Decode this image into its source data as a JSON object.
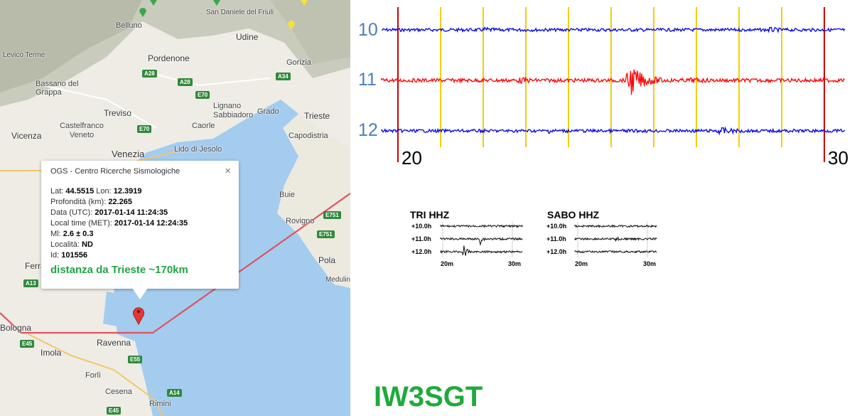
{
  "map": {
    "places": {
      "belluno": "Belluno",
      "udine": "Udine",
      "pordenone": "Pordenone",
      "san_daniele": "San Daniele del Friuli",
      "gorizia": "Gorizia",
      "treviso": "Treviso",
      "bassano": "Bassano del Grappa",
      "levico": "Levico Terme",
      "lignano": "Lignano Sabbiadoro",
      "grado": "Grado",
      "trieste": "Trieste",
      "caorle": "Caorle",
      "vicenza": "Vicenza",
      "castelfranco": "Castelfranco Veneto",
      "capodistria": "Capodistria",
      "venezia": "Venezia",
      "lido": "Lido di Jesolo",
      "buie": "Buie",
      "rovigno": "Rovigno",
      "pola": "Pola",
      "medulin": "Medulin",
      "ferrara": "Ferrara",
      "bologna": "Bologna",
      "imola": "Imola",
      "ravenna": "Ravenna",
      "forli": "Forlì",
      "cesena": "Cesena",
      "rimini": "Rimini"
    },
    "roads": [
      "A28",
      "A28",
      "E70",
      "A34",
      "E70",
      "A13",
      "E45",
      "E751",
      "E751",
      "E45",
      "E55",
      "A14"
    ],
    "popup": {
      "title": "OGS - Centro Ricerche Sismologiche",
      "close": "×",
      "lat_label": "Lat:",
      "lat": "44.5515",
      "lon_label": "Lon:",
      "lon": "12.3919",
      "depth_label": "Profondità (km):",
      "depth": "22.265",
      "date_label": "Data (UTC):",
      "date": "2017-01-14 11:24:35",
      "local_label": "Local time (MET):",
      "local": "2017-01-14 12:24:35",
      "ml_label": "Ml:",
      "ml": "2.6 ± 0.3",
      "loc_label": "Località:",
      "loc": "ND",
      "id_label": "Id:",
      "id": "101556",
      "distance": "distanza da Trieste ~170km"
    }
  },
  "seismogram": {
    "hours": [
      "10",
      "11",
      "12"
    ],
    "time_start": "20",
    "time_end": "30",
    "colors": {
      "blue": "#0000ee",
      "red": "#ff0000",
      "grid": "#f0d000",
      "limit": "#cc0000"
    }
  },
  "stations": [
    {
      "name": "TRI HHZ",
      "rows": [
        "+10.0h",
        "+11.0h",
        "+12.0h"
      ],
      "ticks": [
        "20m",
        "30m"
      ]
    },
    {
      "name": "SABO HHZ",
      "rows": [
        "+10.0h",
        "+11.0h",
        "+12.0h"
      ],
      "ticks": [
        "20m",
        "30m"
      ]
    }
  ],
  "callsign": "IW3SGT"
}
